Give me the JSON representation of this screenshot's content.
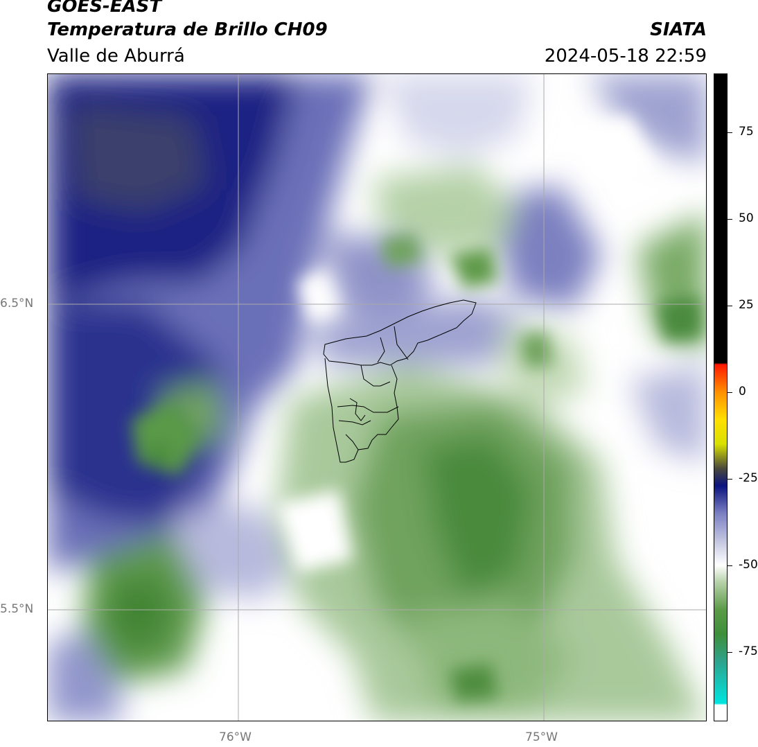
{
  "header": {
    "satellite": "GOES-EAST",
    "product": "Temperatura de Brillo CH09",
    "region": "Valle de Aburrá",
    "organization": "SIATA",
    "timestamp": "2024-05-18 22:59"
  },
  "map": {
    "lat_labels": [
      "6.5°N",
      "5.5°N"
    ],
    "lon_labels": [
      "76°W",
      "75°W"
    ],
    "legend_colors": {
      "very_cold": "#141d6e",
      "cold": "#5f66b4",
      "cool": "#b4b7dc",
      "neutral": "#ffffff",
      "light_green": "#c8dcbe",
      "green": "#82b46e",
      "dark_green": "#4a8a3c"
    }
  },
  "colorbar": {
    "ticks": [
      "75",
      "50",
      "25",
      "0",
      "-25",
      "-50",
      "-75"
    ],
    "range": [
      -95,
      92
    ],
    "stops": [
      {
        "v": -95,
        "c": "#ffffff"
      },
      {
        "v": -90.5,
        "c": "#ffffff"
      },
      {
        "v": -90,
        "c": "#00e5e0"
      },
      {
        "v": -78,
        "c": "#2ea38e"
      },
      {
        "v": -70,
        "c": "#3e8f3a"
      },
      {
        "v": -63,
        "c": "#5a9a46"
      },
      {
        "v": -55,
        "c": "#b6d1a8"
      },
      {
        "v": -50,
        "c": "#ffffff"
      },
      {
        "v": -43,
        "c": "#c3c5e0"
      },
      {
        "v": -35,
        "c": "#7a7fc2"
      },
      {
        "v": -27,
        "c": "#0b137e"
      },
      {
        "v": -22,
        "c": "#4a4a3c"
      },
      {
        "v": -15,
        "c": "#d8e000"
      },
      {
        "v": -8,
        "c": "#ffe000"
      },
      {
        "v": 0,
        "c": "#ff9000"
      },
      {
        "v": 8,
        "c": "#ff1800"
      },
      {
        "v": 8.5,
        "c": "#000000"
      },
      {
        "v": 92,
        "c": "#000000"
      }
    ]
  }
}
